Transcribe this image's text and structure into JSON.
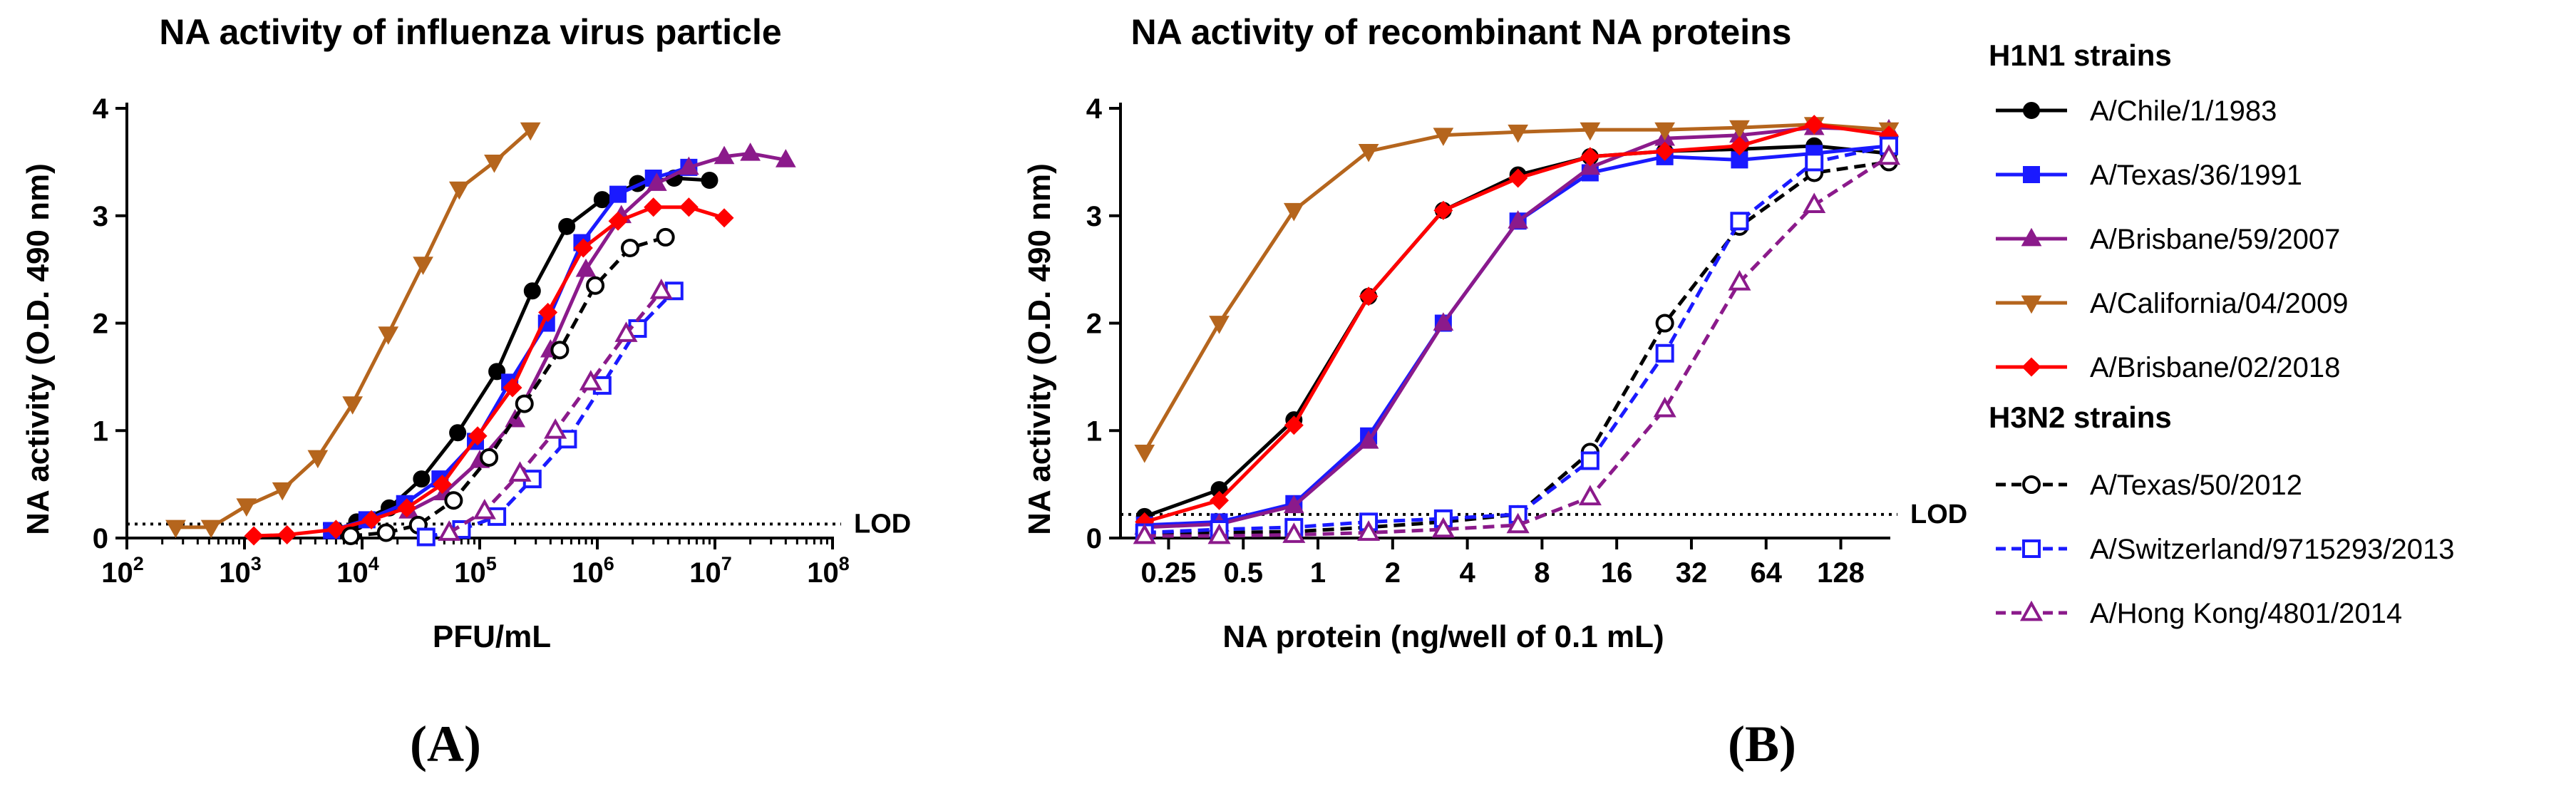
{
  "panels": [
    {
      "letter": "(A)"
    },
    {
      "letter": "(B)"
    }
  ],
  "legend": {
    "groups": [
      {
        "heading": "H1N1 strains",
        "entries": [
          0,
          1,
          2,
          3,
          4
        ]
      },
      {
        "heading": "H3N2 strains",
        "entries": [
          5,
          6,
          7
        ]
      }
    ]
  },
  "strains": [
    {
      "name": "A/Chile/1/1983",
      "color": "#000000",
      "marker": "circle",
      "dashed": false
    },
    {
      "name": "A/Texas/36/1991",
      "color": "#1a1aff",
      "marker": "square",
      "dashed": false
    },
    {
      "name": "A/Brisbane/59/2007",
      "color": "#8b1a8b",
      "marker": "triangle-up",
      "dashed": false
    },
    {
      "name": "A/California/04/2009",
      "color": "#b5651d",
      "marker": "triangle-down",
      "dashed": false
    },
    {
      "name": "A/Brisbane/02/2018",
      "color": "#ff0000",
      "marker": "diamond",
      "dashed": false
    },
    {
      "name": "A/Texas/50/2012",
      "color": "#000000",
      "marker": "circle-open",
      "dashed": true
    },
    {
      "name": "A/Switzerland/9715293/2013",
      "color": "#1a1aff",
      "marker": "square-open",
      "dashed": true
    },
    {
      "name": "A/Hong Kong/4801/2014",
      "color": "#8b1a8b",
      "marker": "triangle-up-open",
      "dashed": true
    }
  ],
  "chart_data": [
    {
      "type": "line",
      "title": "NA activity of influenza virus particle",
      "xlabel": "PFU/mL",
      "ylabel": "NA activity (O.D. 490 nm)",
      "xscale": "log10",
      "xlim": [
        100,
        100000000
      ],
      "ylim": [
        0,
        4
      ],
      "xticks": [
        {
          "base": "10",
          "exp": "2"
        },
        {
          "base": "10",
          "exp": "3"
        },
        {
          "base": "10",
          "exp": "4"
        },
        {
          "base": "10",
          "exp": "5"
        },
        {
          "base": "10",
          "exp": "6"
        },
        {
          "base": "10",
          "exp": "7"
        },
        {
          "base": "10",
          "exp": "8"
        }
      ],
      "yticks": [
        "0",
        "1",
        "2",
        "3",
        "4"
      ],
      "lod": {
        "value": 0.13,
        "label": "LOD"
      },
      "series": [
        {
          "strain": 0,
          "points": [
            [
              6000,
              0.07
            ],
            [
              9000,
              0.15
            ],
            [
              17000,
              0.28
            ],
            [
              32000,
              0.55
            ],
            [
              65000,
              0.98
            ],
            [
              140000,
              1.55
            ],
            [
              280000,
              2.3
            ],
            [
              550000,
              2.9
            ],
            [
              1100000,
              3.15
            ],
            [
              2200000,
              3.3
            ],
            [
              4500000,
              3.35
            ],
            [
              9000000,
              3.33
            ]
          ]
        },
        {
          "strain": 1,
          "points": [
            [
              5500,
              0.07
            ],
            [
              11000,
              0.17
            ],
            [
              23000,
              0.32
            ],
            [
              46000,
              0.55
            ],
            [
              92000,
              0.9
            ],
            [
              180000,
              1.45
            ],
            [
              370000,
              2.0
            ],
            [
              740000,
              2.75
            ],
            [
              1500000,
              3.2
            ],
            [
              3000000,
              3.35
            ],
            [
              6000000,
              3.45
            ]
          ]
        },
        {
          "strain": 2,
          "points": [
            [
              25000,
              0.25
            ],
            [
              50000,
              0.42
            ],
            [
              100000,
              0.72
            ],
            [
              200000,
              1.1
            ],
            [
              400000,
              1.75
            ],
            [
              800000,
              2.5
            ],
            [
              1600000,
              3.0
            ],
            [
              3200000,
              3.3
            ],
            [
              6000000,
              3.45
            ],
            [
              12000000,
              3.55
            ],
            [
              20000000,
              3.58
            ],
            [
              40000000,
              3.52
            ]
          ]
        },
        {
          "strain": 3,
          "points": [
            [
              260,
              0.1
            ],
            [
              520,
              0.1
            ],
            [
              1040,
              0.3
            ],
            [
              2100,
              0.45
            ],
            [
              4200,
              0.75
            ],
            [
              8300,
              1.25
            ],
            [
              16700,
              1.9
            ],
            [
              33000,
              2.55
            ],
            [
              67000,
              3.25
            ],
            [
              133000,
              3.5
            ],
            [
              270000,
              3.8
            ]
          ]
        },
        {
          "strain": 4,
          "points": [
            [
              1200,
              0.02
            ],
            [
              2300,
              0.03
            ],
            [
              6000,
              0.08
            ],
            [
              12000,
              0.17
            ],
            [
              24000,
              0.28
            ],
            [
              48000,
              0.5
            ],
            [
              96000,
              0.95
            ],
            [
              190000,
              1.4
            ],
            [
              380000,
              2.1
            ],
            [
              760000,
              2.7
            ],
            [
              1500000,
              2.95
            ],
            [
              3000000,
              3.08
            ],
            [
              6000000,
              3.08
            ],
            [
              12000000,
              2.98
            ]
          ]
        },
        {
          "strain": 5,
          "points": [
            [
              8000,
              0.02
            ],
            [
              16000,
              0.05
            ],
            [
              30000,
              0.12
            ],
            [
              60000,
              0.35
            ],
            [
              120000,
              0.75
            ],
            [
              240000,
              1.25
            ],
            [
              480000,
              1.75
            ],
            [
              960000,
              2.35
            ],
            [
              1900000,
              2.7
            ],
            [
              3800000,
              2.8
            ]
          ]
        },
        {
          "strain": 6,
          "points": [
            [
              35000,
              0.01
            ],
            [
              70000,
              0.08
            ],
            [
              140000,
              0.2
            ],
            [
              280000,
              0.55
            ],
            [
              560000,
              0.92
            ],
            [
              1100000,
              1.42
            ],
            [
              2200000,
              1.95
            ],
            [
              4500000,
              2.3
            ]
          ]
        },
        {
          "strain": 7,
          "points": [
            [
              55000,
              0.05
            ],
            [
              110000,
              0.25
            ],
            [
              220000,
              0.6
            ],
            [
              440000,
              1.0
            ],
            [
              880000,
              1.45
            ],
            [
              1760000,
              1.9
            ],
            [
              3500000,
              2.3
            ]
          ]
        }
      ]
    },
    {
      "type": "line",
      "title": "NA activity of recombinant NA proteins",
      "xlabel": "NA protein (ng/well of 0.1 mL)",
      "ylabel": "NA activity (O.D. 490 nm)",
      "xscale": "log2",
      "xlim": [
        0.16,
        200
      ],
      "ylim": [
        0,
        4
      ],
      "xticks": [
        {
          "value": 0.25,
          "label": "0.25"
        },
        {
          "value": 0.5,
          "label": "0.5"
        },
        {
          "value": 1,
          "label": "1"
        },
        {
          "value": 2,
          "label": "2"
        },
        {
          "value": 4,
          "label": "4"
        },
        {
          "value": 8,
          "label": "8"
        },
        {
          "value": 16,
          "label": "16"
        },
        {
          "value": 32,
          "label": "32"
        },
        {
          "value": 64,
          "label": "64"
        },
        {
          "value": 128,
          "label": "128"
        }
      ],
      "yticks": [
        "0",
        "1",
        "2",
        "3",
        "4"
      ],
      "lod": {
        "value": 0.22,
        "label": "LOD"
      },
      "series": [
        {
          "strain": 0,
          "points": [
            [
              0.2,
              0.2
            ],
            [
              0.4,
              0.45
            ],
            [
              0.8,
              1.1
            ],
            [
              1.6,
              2.25
            ],
            [
              3.2,
              3.05
            ],
            [
              6.4,
              3.38
            ],
            [
              12.5,
              3.55
            ],
            [
              25,
              3.6
            ],
            [
              50,
              3.62
            ],
            [
              100,
              3.65
            ],
            [
              200,
              3.58
            ]
          ]
        },
        {
          "strain": 1,
          "points": [
            [
              0.2,
              0.12
            ],
            [
              0.4,
              0.15
            ],
            [
              0.8,
              0.32
            ],
            [
              1.6,
              0.95
            ],
            [
              3.2,
              2.0
            ],
            [
              6.4,
              2.95
            ],
            [
              12.5,
              3.4
            ],
            [
              25,
              3.55
            ],
            [
              50,
              3.52
            ],
            [
              100,
              3.58
            ],
            [
              200,
              3.65
            ]
          ]
        },
        {
          "strain": 2,
          "points": [
            [
              0.2,
              0.1
            ],
            [
              0.4,
              0.13
            ],
            [
              0.8,
              0.3
            ],
            [
              1.6,
              0.9
            ],
            [
              3.2,
              2.0
            ],
            [
              6.4,
              2.95
            ],
            [
              12.5,
              3.45
            ],
            [
              25,
              3.72
            ],
            [
              50,
              3.75
            ],
            [
              100,
              3.82
            ],
            [
              200,
              3.8
            ]
          ]
        },
        {
          "strain": 3,
          "points": [
            [
              0.2,
              0.8
            ],
            [
              0.4,
              2.0
            ],
            [
              0.8,
              3.05
            ],
            [
              1.6,
              3.6
            ],
            [
              3.2,
              3.75
            ],
            [
              6.4,
              3.78
            ],
            [
              12.5,
              3.8
            ],
            [
              25,
              3.8
            ],
            [
              50,
              3.82
            ],
            [
              100,
              3.85
            ],
            [
              200,
              3.8
            ]
          ]
        },
        {
          "strain": 4,
          "points": [
            [
              0.2,
              0.15
            ],
            [
              0.4,
              0.35
            ],
            [
              0.8,
              1.05
            ],
            [
              1.6,
              2.25
            ],
            [
              3.2,
              3.05
            ],
            [
              6.4,
              3.35
            ],
            [
              12.5,
              3.55
            ],
            [
              25,
              3.6
            ],
            [
              50,
              3.65
            ],
            [
              100,
              3.85
            ],
            [
              200,
              3.75
            ]
          ]
        },
        {
          "strain": 5,
          "points": [
            [
              0.2,
              0.05
            ],
            [
              0.4,
              0.05
            ],
            [
              0.8,
              0.06
            ],
            [
              1.6,
              0.1
            ],
            [
              3.2,
              0.15
            ],
            [
              6.4,
              0.22
            ],
            [
              12.5,
              0.8
            ],
            [
              25,
              2.0
            ],
            [
              50,
              2.9
            ],
            [
              100,
              3.4
            ],
            [
              200,
              3.5
            ]
          ]
        },
        {
          "strain": 6,
          "points": [
            [
              0.2,
              0.05
            ],
            [
              0.4,
              0.08
            ],
            [
              0.8,
              0.1
            ],
            [
              1.6,
              0.15
            ],
            [
              3.2,
              0.18
            ],
            [
              6.4,
              0.22
            ],
            [
              12.5,
              0.72
            ],
            [
              25,
              1.72
            ],
            [
              50,
              2.95
            ],
            [
              100,
              3.5
            ],
            [
              200,
              3.65
            ]
          ]
        },
        {
          "strain": 7,
          "points": [
            [
              0.2,
              0.02
            ],
            [
              0.4,
              0.02
            ],
            [
              0.8,
              0.03
            ],
            [
              1.6,
              0.05
            ],
            [
              3.2,
              0.08
            ],
            [
              6.4,
              0.12
            ],
            [
              12.5,
              0.38
            ],
            [
              25,
              1.2
            ],
            [
              50,
              2.38
            ],
            [
              100,
              3.1
            ],
            [
              200,
              3.55
            ]
          ]
        }
      ]
    }
  ]
}
